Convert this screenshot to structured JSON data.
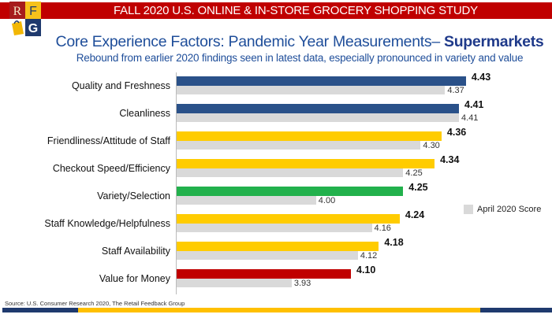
{
  "header": {
    "banner": "FALL 2020 U.S. ONLINE & IN-STORE GROCERY SHOPPING STUDY",
    "logo_letters": [
      "R",
      "F",
      "G"
    ]
  },
  "title": {
    "main": "Core Experience Factors: Pandemic Year Measurements– ",
    "emphasis": "Supermarkets",
    "subtitle": "Rebound from earlier 2020 findings seen in latest data, especially pronounced in variety and value"
  },
  "chart_data": {
    "type": "bar",
    "orientation": "horizontal",
    "categories": [
      "Quality and Freshness",
      "Cleanliness",
      "Friendliness/Attitude of Staff",
      "Checkout Speed/Efficiency",
      "Variety/Selection",
      "Staff Knowledge/Helpfulness",
      "Staff Availability",
      "Value for Money"
    ],
    "series": [
      {
        "values": [
          4.43,
          4.41,
          4.36,
          4.34,
          4.25,
          4.24,
          4.18,
          4.1
        ],
        "colors": [
          "#2a5189",
          "#2a5189",
          "#ffcc00",
          "#ffcc00",
          "#22b14c",
          "#ffcc00",
          "#ffcc00",
          "#c00000"
        ]
      },
      {
        "name": "April 2020 Score",
        "values": [
          4.37,
          4.41,
          4.3,
          4.25,
          4.0,
          4.16,
          4.12,
          3.93
        ],
        "color": "#d9d9d9"
      }
    ],
    "xlim": [
      3.6,
      4.5
    ],
    "grid": false,
    "legend": "right"
  },
  "source": "Source: U.S. Consumer Research 2020, The Retail Feedback Group",
  "colors": {
    "banner": "#c00000",
    "navy": "#1f3a6e",
    "gold": "#ffc000"
  }
}
